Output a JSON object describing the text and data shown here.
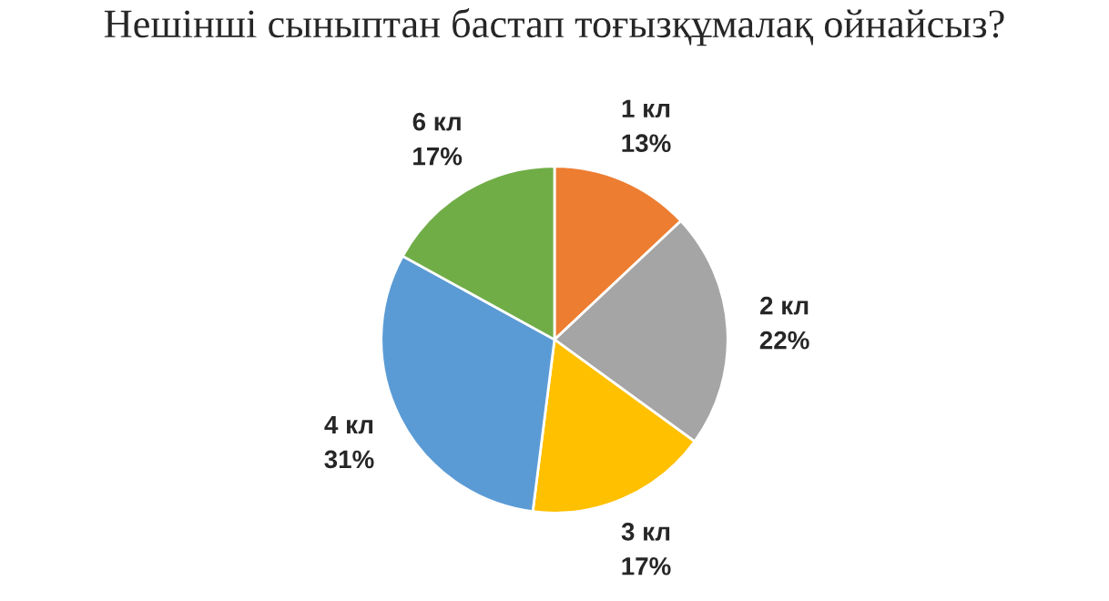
{
  "chart_data": {
    "type": "pie",
    "title": "Нешінші сыныптан бастап тоғызқұмалақ ойнайсыз?",
    "categories": [
      "1 кл",
      "2 кл",
      "3 кл",
      "4 кл",
      "6 кл"
    ],
    "values": [
      13,
      22,
      17,
      31,
      17
    ],
    "value_labels": [
      "13%",
      "22%",
      "17%",
      "31%",
      "17%"
    ],
    "colors": [
      "#ed7d31",
      "#a5a5a5",
      "#ffc000",
      "#5b9bd5",
      "#70ad47"
    ],
    "legend": false
  }
}
